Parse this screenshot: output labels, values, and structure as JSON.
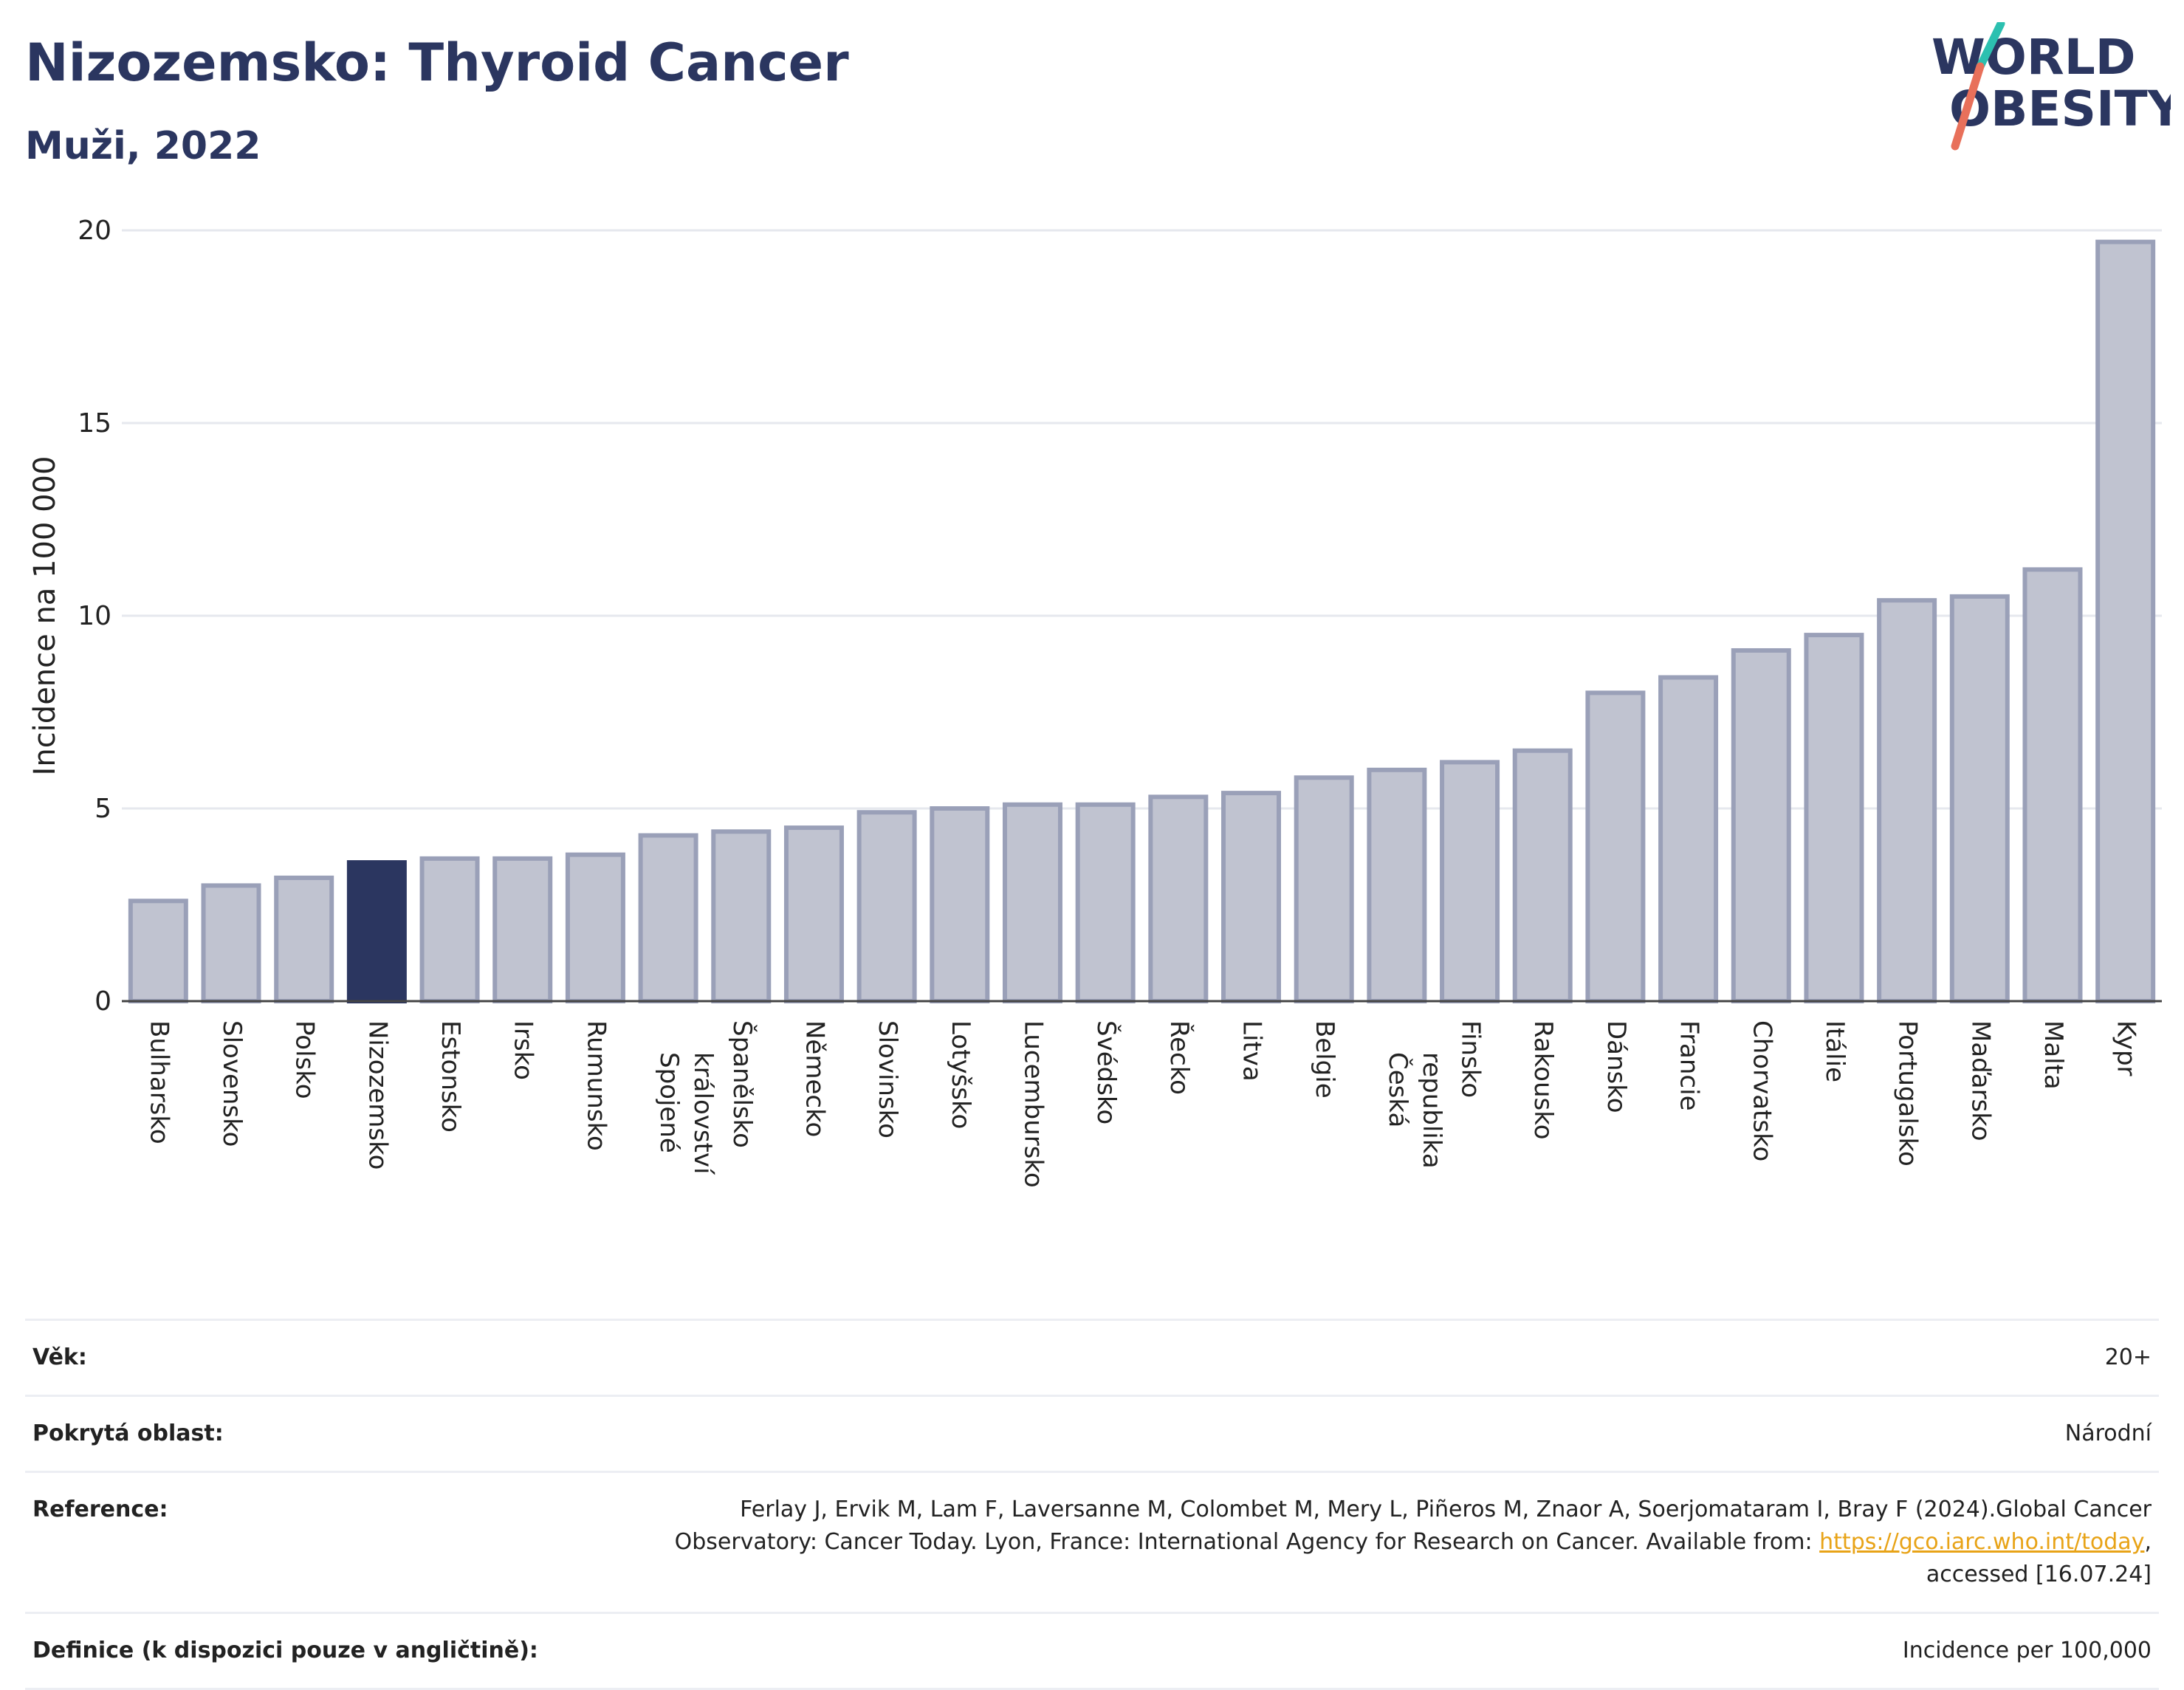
{
  "header": {
    "title": "Nizozemsko: Thyroid Cancer",
    "subtitle": "Muži, 2022",
    "logo_line1": "WORLD",
    "logo_line2": "OBESITY"
  },
  "chart_data": {
    "type": "bar",
    "ylabel": "Incidence na 100 000",
    "ylim": [
      0,
      20
    ],
    "yticks": [
      0,
      5,
      10,
      15,
      20
    ],
    "grid": true,
    "highlight": "Nizozemsko",
    "colors": {
      "bar": "#c0c3d0",
      "bar_border": "#9aa0b8",
      "highlight": "#2b3660"
    },
    "categories": [
      "Bulharsko",
      "Slovensko",
      "Polsko",
      "Nizozemsko",
      "Estonsko",
      "Irsko",
      "Rumunsko",
      "Spojené království",
      "Španělsko",
      "Německo",
      "Slovinsko",
      "Lotyšsko",
      "Lucembursko",
      "Švédsko",
      "Řecko",
      "Litva",
      "Belgie",
      "Česká republika",
      "Finsko",
      "Rakousko",
      "Dánsko",
      "Francie",
      "Chorvatsko",
      "Itálie",
      "Portugalsko",
      "Maďarsko",
      "Malta",
      "Kypr"
    ],
    "values": [
      2.6,
      3.0,
      3.2,
      3.6,
      3.7,
      3.7,
      3.8,
      4.3,
      4.4,
      4.5,
      4.9,
      5.0,
      5.1,
      5.1,
      5.3,
      5.4,
      5.8,
      6.0,
      6.2,
      6.5,
      8.0,
      8.4,
      9.1,
      9.5,
      10.4,
      10.5,
      11.2,
      19.7
    ]
  },
  "info": {
    "age_label": "Věk:",
    "age_value": "20+",
    "area_label": "Pokrytá oblast:",
    "area_value": "Národní",
    "ref_label": "Reference:",
    "ref_text_before": "Ferlay J, Ervik M, Lam F, Laversanne M, Colombet M, Mery L, Piñeros M, Znaor A, Soerjomataram I, Bray F (2024).Global Cancer Observatory: Cancer Today. Lyon, France: International Agency for Research on Cancer. Available from: ",
    "ref_link": "https://gco.iarc.who.int/today",
    "ref_text_after": ", accessed [16.07.24]",
    "def_label": "Definice (k dispozici pouze v angličtině):",
    "def_value": "Incidence per 100,000"
  }
}
